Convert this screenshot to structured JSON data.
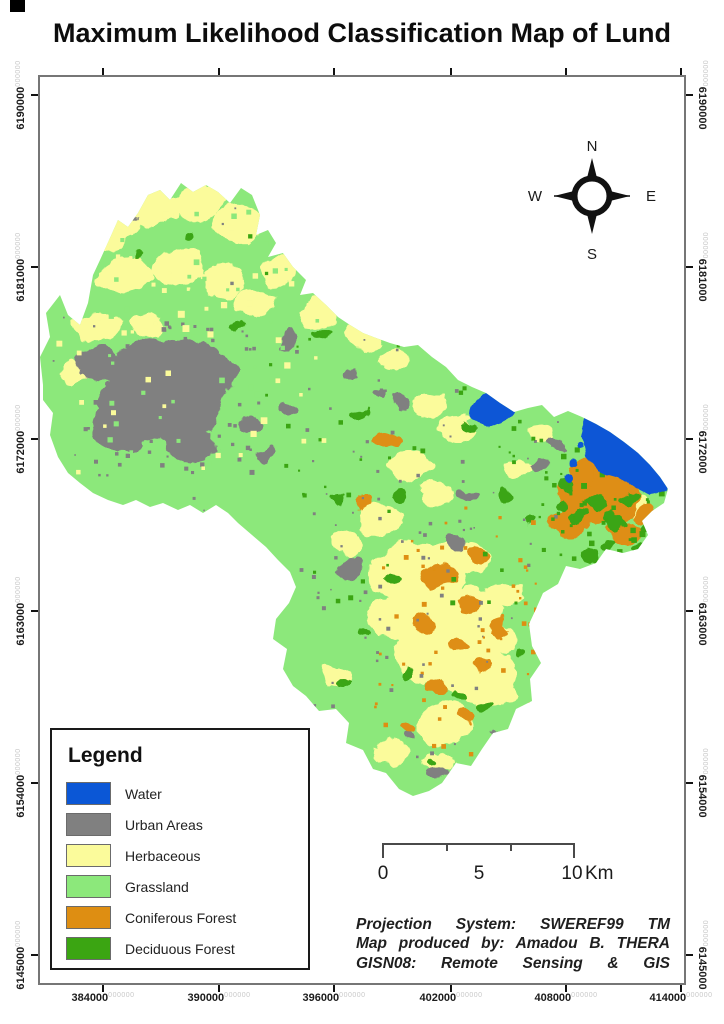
{
  "page": {
    "title": "Maximum Likelihood Classification Map of Lund"
  },
  "compass": {
    "n": "N",
    "e": "E",
    "s": "S",
    "w": "W"
  },
  "legend": {
    "title": "Legend",
    "items": [
      {
        "key": "water",
        "label": "Water",
        "color": "#0B57D6"
      },
      {
        "key": "urban",
        "label": "Urban Areas",
        "color": "#808080"
      },
      {
        "key": "herbaceous",
        "label": "Herbaceous",
        "color": "#FBFB9B"
      },
      {
        "key": "grassland",
        "label": "Grassland",
        "color": "#8CE87B"
      },
      {
        "key": "coniferous",
        "label": "Coniferous Forest",
        "color": "#DE8E12"
      },
      {
        "key": "deciduous",
        "label": "Deciduous Forest",
        "color": "#3BA512"
      }
    ]
  },
  "scalebar": {
    "start": "0",
    "middle": "5",
    "end": "10",
    "unit": "Km"
  },
  "credits": {
    "line1": "Projection System: SWEREF99 TM",
    "line2": "Map produced by: Amadou B. THERA",
    "line3": "GISN08: Remote Sensing & GIS"
  },
  "axes": {
    "minor": "000000",
    "x": [
      "384000",
      "390000",
      "396000",
      "402000",
      "408000",
      "414000"
    ],
    "y": [
      "6190000",
      "6181000",
      "6172000",
      "6163000",
      "6154000",
      "6145000"
    ]
  }
}
